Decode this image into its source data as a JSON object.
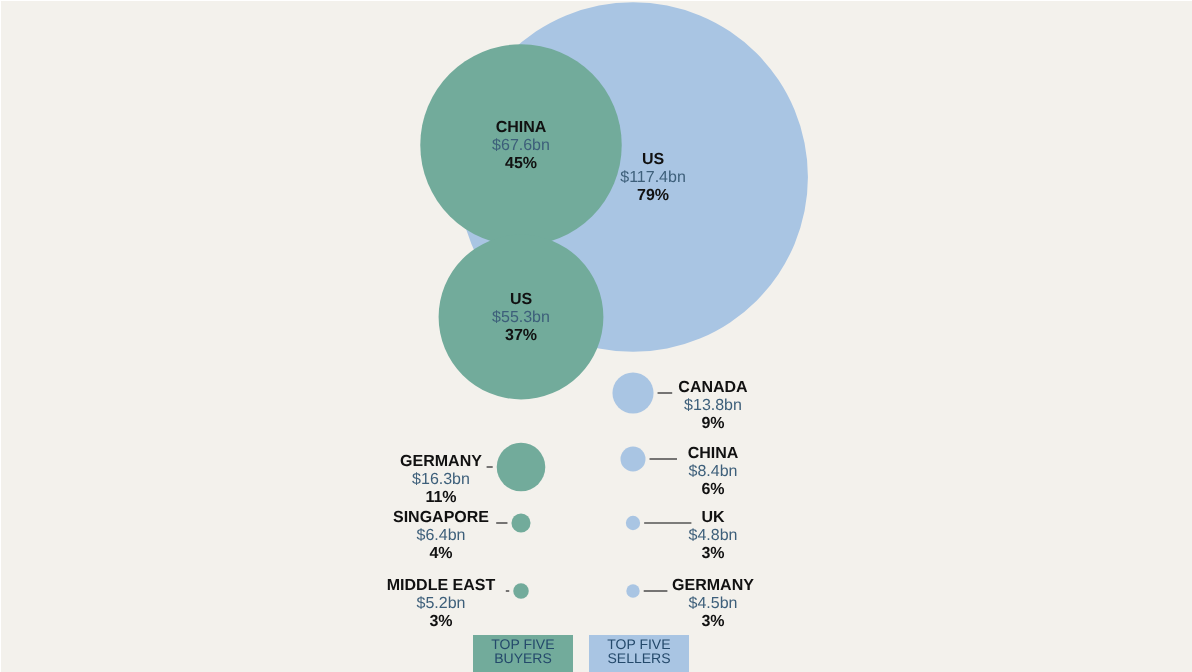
{
  "chart_data": {
    "type": "other",
    "categories": [
      "CHINA",
      "US",
      "GERMANY",
      "SINGAPORE",
      "MIDDLE EAST",
      "US",
      "CANADA",
      "CHINA",
      "UK",
      "GERMANY"
    ],
    "series": [
      {
        "name": "TOP FIVE\nBUYERS",
        "color": "#72ab9b",
        "values": [
          67.6,
          55.3,
          16.3,
          6.4,
          5.2,
          null,
          null,
          null,
          null,
          null
        ],
        "value_labels": [
          "$67.6bn",
          "$55.3bn",
          "$16.3bn",
          "$6.4bn",
          "$5.2bn",
          null,
          null,
          null,
          null,
          null
        ]
      },
      {
        "name": "TOP FIVE\nSELLERS",
        "color": "#a9c5e3",
        "values": [
          null,
          null,
          null,
          null,
          null,
          117.4,
          13.8,
          8.4,
          4.8,
          4.5
        ],
        "value_labels": [
          null,
          null,
          null,
          null,
          null,
          "$117.4bn",
          "$13.8bn",
          "$8.4bn",
          "$4.8bn",
          "$4.5bn"
        ]
      }
    ],
    "annotations": [
      "45%",
      "37%",
      "11%",
      "4%",
      "3%",
      "79%",
      "9%",
      "6%",
      "3%",
      "3%"
    ],
    "legend": "bottom"
  }
}
